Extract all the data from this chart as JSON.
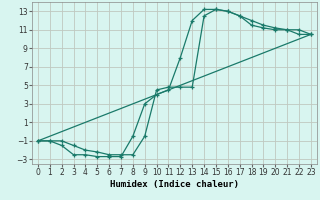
{
  "xlabel": "Humidex (Indice chaleur)",
  "background_color": "#d8f5f0",
  "grid_color": "#c0c8c0",
  "line_color": "#1a7a6a",
  "xlim": [
    -0.5,
    23.5
  ],
  "ylim": [
    -3.5,
    14.0
  ],
  "xticks": [
    0,
    1,
    2,
    3,
    4,
    5,
    6,
    7,
    8,
    9,
    10,
    11,
    12,
    13,
    14,
    15,
    16,
    17,
    18,
    19,
    20,
    21,
    22,
    23
  ],
  "yticks": [
    -3,
    -1,
    1,
    3,
    5,
    7,
    9,
    11,
    13
  ],
  "curve1_x": [
    0,
    1,
    2,
    3,
    4,
    5,
    6,
    7,
    8,
    9,
    10,
    11,
    12,
    13,
    14,
    15,
    16,
    17,
    18,
    19,
    20,
    21,
    22,
    23
  ],
  "curve1_y": [
    -1,
    -1,
    -1.5,
    -2.5,
    -2.5,
    -2.7,
    -2.7,
    -2.7,
    -0.5,
    3,
    4.0,
    4.5,
    8,
    12,
    13.2,
    13.2,
    13.0,
    12.5,
    12.0,
    11.5,
    11.2,
    11.0,
    11.0,
    10.5
  ],
  "curve2_x": [
    0,
    1,
    2,
    3,
    4,
    5,
    6,
    7,
    8,
    9,
    10,
    11,
    12,
    13,
    14,
    15,
    16,
    17,
    18,
    19,
    20,
    21,
    22,
    23
  ],
  "curve2_y": [
    -1,
    -1,
    -1,
    -1.5,
    -2.0,
    -2.2,
    -2.5,
    -2.5,
    -2.5,
    -0.5,
    4.5,
    4.8,
    4.8,
    4.8,
    12.5,
    13.2,
    13.0,
    12.5,
    11.5,
    11.2,
    11.0,
    11.0,
    10.5,
    10.5
  ],
  "curve3_x": [
    0,
    23
  ],
  "curve3_y": [
    -1,
    10.5
  ]
}
